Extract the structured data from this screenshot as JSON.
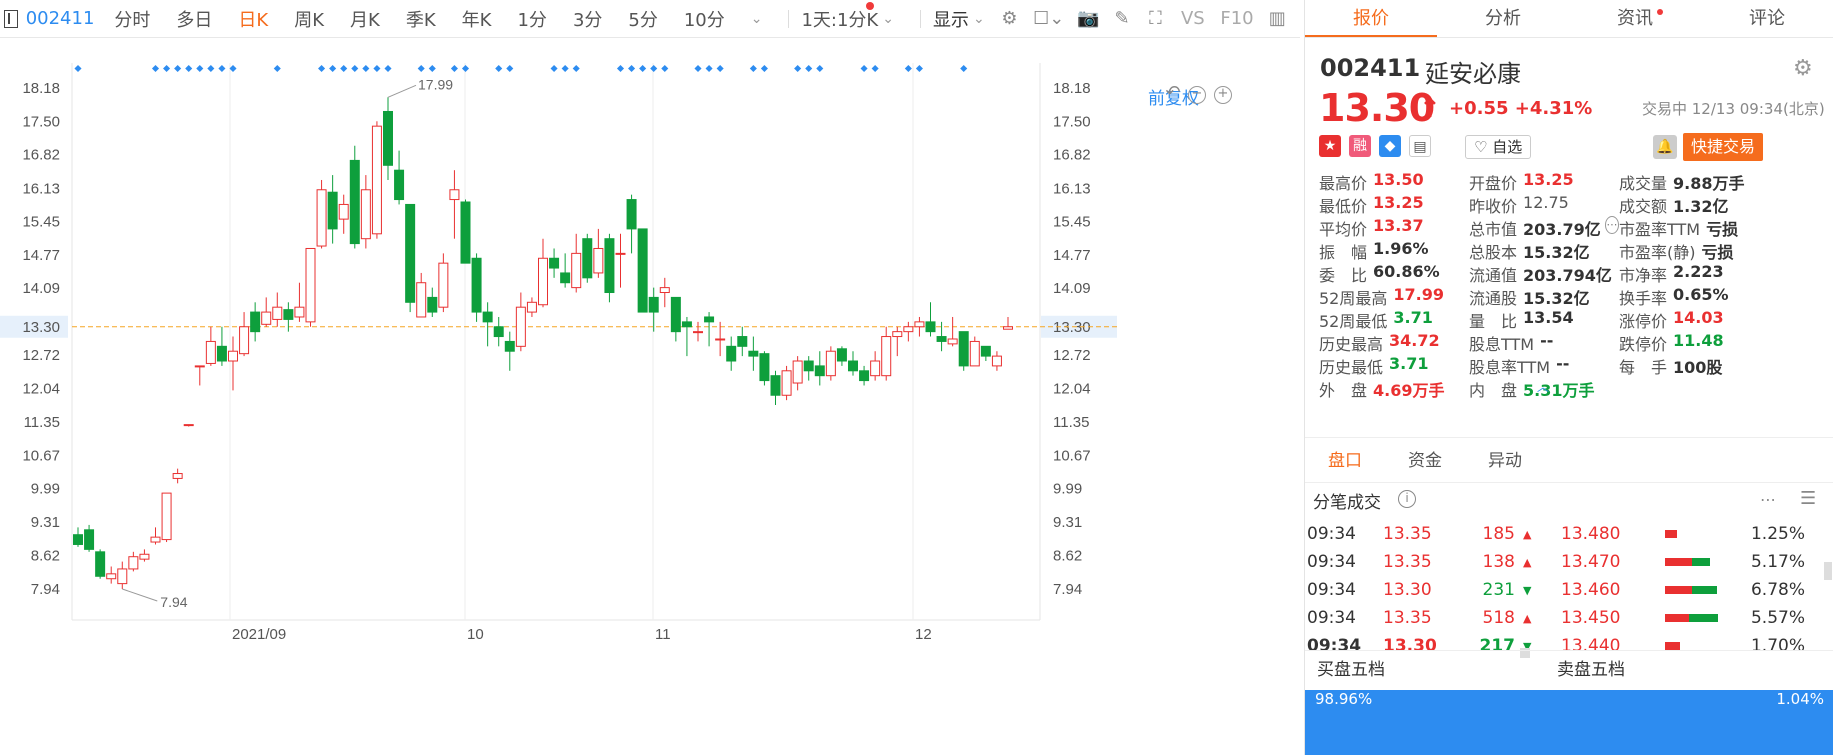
{
  "toolbar": {
    "code": "002411",
    "periods": [
      "分时",
      "多日",
      "日K",
      "周K",
      "月K",
      "季K",
      "年K",
      "1分",
      "3分",
      "5分",
      "10分"
    ],
    "active_period": "日K",
    "interval_select": "1天:1分K",
    "display_label": "显示",
    "vs_label": "VS",
    "f10_label": "F10"
  },
  "chart": {
    "adjust_label": "前复权",
    "yticks": [
      "18.18",
      "17.50",
      "16.82",
      "16.13",
      "15.45",
      "14.77",
      "14.09",
      "13.30",
      "12.72",
      "12.04",
      "11.35",
      "10.67",
      "9.99",
      "9.31",
      "8.62",
      "7.94"
    ],
    "xticks": [
      "2021/09",
      "10",
      "11",
      "12"
    ],
    "current_price_tag": "13.30",
    "high_label": "17.99",
    "low_label": "7.94",
    "up_color": "#e93030",
    "down_color": "#0e9f3c",
    "dash_color": "#f5a623"
  },
  "chart_data": {
    "type": "candlestick",
    "ylim": [
      7.94,
      18.18
    ],
    "xlabel": "",
    "ylabel": "",
    "x_tick_labels": [
      "2021/09",
      "10",
      "11",
      "12"
    ],
    "annotations": [
      {
        "text": "17.99",
        "type": "max"
      },
      {
        "text": "7.94",
        "type": "min"
      }
    ],
    "candles": [
      [
        9.05,
        8.85,
        9.2,
        8.8
      ],
      [
        9.15,
        8.75,
        9.25,
        8.7
      ],
      [
        8.7,
        8.2,
        8.75,
        8.15
      ],
      [
        8.15,
        8.25,
        8.4,
        8.05
      ],
      [
        8.05,
        8.35,
        8.5,
        7.94
      ],
      [
        8.35,
        8.6,
        8.7,
        8.3
      ],
      [
        8.55,
        8.65,
        8.75,
        8.5
      ],
      [
        8.9,
        9.0,
        9.2,
        8.85
      ],
      [
        8.95,
        9.9,
        9.9,
        8.9
      ],
      [
        10.2,
        10.3,
        10.4,
        10.1
      ],
      [
        11.28,
        11.3,
        11.3,
        11.26
      ],
      [
        12.5,
        12.5,
        12.5,
        12.1
      ],
      [
        12.55,
        13.0,
        13.3,
        12.5
      ],
      [
        12.9,
        12.6,
        13.3,
        12.5
      ],
      [
        12.6,
        12.8,
        13.1,
        12.0
      ],
      [
        12.75,
        13.3,
        13.6,
        12.7
      ],
      [
        13.6,
        13.2,
        13.8,
        13.0
      ],
      [
        13.35,
        13.6,
        13.9,
        13.3
      ],
      [
        13.45,
        13.7,
        14.0,
        13.3
      ],
      [
        13.65,
        13.45,
        13.8,
        13.2
      ],
      [
        13.5,
        13.7,
        14.2,
        13.4
      ],
      [
        13.4,
        14.9,
        14.9,
        13.3
      ],
      [
        14.95,
        16.1,
        16.3,
        14.9
      ],
      [
        16.05,
        15.3,
        16.4,
        15.0
      ],
      [
        15.5,
        15.8,
        16.0,
        15.2
      ],
      [
        16.7,
        15.0,
        17.0,
        14.9
      ],
      [
        15.1,
        16.1,
        16.4,
        14.9
      ],
      [
        15.2,
        17.4,
        17.5,
        15.1
      ],
      [
        17.7,
        16.6,
        17.99,
        16.3
      ],
      [
        16.5,
        15.9,
        16.9,
        15.8
      ],
      [
        15.8,
        13.8,
        15.8,
        13.6
      ],
      [
        13.5,
        14.2,
        14.4,
        13.5
      ],
      [
        13.9,
        13.6,
        14.1,
        13.5
      ],
      [
        13.7,
        14.6,
        14.8,
        13.6
      ],
      [
        15.9,
        16.1,
        16.5,
        15.1
      ],
      [
        15.85,
        14.6,
        15.9,
        14.6
      ],
      [
        14.7,
        13.6,
        14.8,
        13.4
      ],
      [
        13.6,
        13.4,
        13.8,
        12.9
      ],
      [
        13.3,
        13.1,
        13.5,
        12.9
      ],
      [
        13.0,
        12.8,
        13.2,
        12.4
      ],
      [
        12.9,
        13.7,
        14.0,
        12.8
      ],
      [
        13.6,
        13.8,
        13.9,
        13.5
      ],
      [
        13.75,
        14.7,
        15.1,
        13.7
      ],
      [
        14.7,
        14.5,
        14.9,
        14.3
      ],
      [
        14.4,
        14.2,
        14.8,
        14.1
      ],
      [
        14.1,
        14.8,
        15.2,
        14.0
      ],
      [
        15.1,
        14.3,
        15.2,
        14.2
      ],
      [
        14.4,
        14.9,
        15.3,
        14.3
      ],
      [
        15.1,
        14.0,
        15.2,
        13.8
      ],
      [
        14.8,
        14.8,
        15.2,
        14.1
      ],
      [
        15.9,
        15.3,
        16.0,
        14.8
      ],
      [
        15.3,
        13.6,
        15.3,
        13.6
      ],
      [
        13.9,
        13.6,
        14.1,
        13.2
      ],
      [
        14.0,
        14.1,
        14.3,
        13.7
      ],
      [
        13.9,
        13.2,
        13.9,
        13.0
      ],
      [
        13.4,
        13.3,
        13.5,
        12.7
      ],
      [
        13.2,
        13.2,
        13.4,
        13.0
      ],
      [
        13.5,
        13.4,
        13.6,
        12.9
      ],
      [
        13.05,
        13.05,
        13.4,
        12.7
      ],
      [
        12.9,
        12.6,
        13.1,
        12.4
      ],
      [
        13.1,
        12.9,
        13.3,
        12.7
      ],
      [
        12.8,
        12.7,
        13.1,
        12.4
      ],
      [
        12.75,
        12.2,
        12.8,
        12.1
      ],
      [
        12.3,
        11.9,
        12.4,
        11.7
      ],
      [
        11.9,
        12.4,
        12.5,
        11.8
      ],
      [
        12.15,
        12.6,
        12.7,
        12.0
      ],
      [
        12.6,
        12.4,
        12.7,
        12.2
      ],
      [
        12.5,
        12.3,
        12.8,
        12.1
      ],
      [
        12.3,
        12.8,
        12.9,
        12.2
      ],
      [
        12.85,
        12.6,
        12.9,
        12.5
      ],
      [
        12.6,
        12.4,
        12.8,
        12.3
      ],
      [
        12.4,
        12.2,
        12.5,
        12.1
      ],
      [
        12.3,
        12.6,
        12.8,
        12.2
      ],
      [
        12.3,
        13.1,
        13.3,
        12.2
      ],
      [
        13.1,
        13.2,
        13.3,
        12.7
      ],
      [
        13.2,
        13.3,
        13.4,
        13.0
      ],
      [
        13.3,
        13.4,
        13.5,
        13.1
      ],
      [
        13.4,
        13.2,
        13.8,
        13.1
      ],
      [
        13.1,
        13.0,
        13.4,
        12.8
      ],
      [
        12.95,
        13.05,
        13.5,
        12.9
      ],
      [
        13.2,
        12.5,
        13.2,
        12.4
      ],
      [
        12.5,
        13.0,
        13.1,
        12.5
      ],
      [
        12.9,
        12.7,
        12.9,
        12.6
      ],
      [
        12.5,
        12.7,
        12.8,
        12.4
      ],
      [
        13.25,
        13.3,
        13.5,
        13.25
      ]
    ],
    "markers_count": 44,
    "current": 13.3
  },
  "quote": {
    "code": "002411",
    "name": "延安必康",
    "price": "13.30",
    "arrow": "↑",
    "change": "+0.55",
    "change_pct": "+4.31%",
    "trade_status": "交易中 12/13 09:34(北京)",
    "watch_label": "自选",
    "quick_trade": "快捷交易"
  },
  "tabs": [
    "报价",
    "分析",
    "资讯",
    "评论"
  ],
  "stats": [
    [
      [
        "最高价",
        "13.50",
        "red"
      ],
      [
        "开盘价",
        "13.25",
        "red"
      ],
      [
        "成交量",
        "9.88万手",
        "dark"
      ]
    ],
    [
      [
        "最低价",
        "13.25",
        "red"
      ],
      [
        "昨收价",
        "12.75",
        "gray"
      ],
      [
        "成交额",
        "1.32亿",
        "dark"
      ]
    ],
    [
      [
        "平均价",
        "13.37",
        "red"
      ],
      [
        "总市值",
        "203.79亿",
        "dark"
      ],
      [
        "市盈率TTM",
        "亏损",
        "dark"
      ]
    ],
    [
      [
        "振　幅",
        "1.96%",
        "dark"
      ],
      [
        "总股本",
        "15.32亿",
        "dark"
      ],
      [
        "市盈率(静)",
        "亏损",
        "dark"
      ]
    ],
    [
      [
        "委　比",
        "60.86%",
        "dark"
      ],
      [
        "流通值",
        "203.794亿",
        "dark"
      ],
      [
        "市净率",
        "2.223",
        "dark"
      ]
    ],
    [
      [
        "52周最高",
        "17.99",
        "red"
      ],
      [
        "流通股",
        "15.32亿",
        "dark"
      ],
      [
        "换手率",
        "0.65%",
        "dark"
      ]
    ],
    [
      [
        "52周最低",
        "3.71",
        "green"
      ],
      [
        "量　比",
        "13.54",
        "dark"
      ],
      [
        "涨停价",
        "14.03",
        "red"
      ]
    ],
    [
      [
        "历史最高",
        "34.72",
        "red"
      ],
      [
        "股息TTM",
        "--",
        "dark"
      ],
      [
        "跌停价",
        "11.48",
        "green"
      ]
    ],
    [
      [
        "历史最低",
        "3.71",
        "green"
      ],
      [
        "股息率TTM",
        "--",
        "dark"
      ],
      [
        "每　手",
        "100股",
        "dark"
      ]
    ],
    [
      [
        "外　盘",
        "4.69万手",
        "red"
      ],
      [
        "内　盘",
        "5.31万手",
        "green"
      ],
      [
        "",
        "",
        ""
      ]
    ]
  ],
  "subtabs": [
    "盘口",
    "资金",
    "异动"
  ],
  "ticks_title": "分笔成交",
  "ticks": [
    {
      "time": "09:34",
      "price": "13.35",
      "vol": "185",
      "dir": "up"
    },
    {
      "time": "09:34",
      "price": "13.35",
      "vol": "138",
      "dir": "up"
    },
    {
      "time": "09:34",
      "price": "13.30",
      "vol": "231",
      "dir": "down"
    },
    {
      "time": "09:34",
      "price": "13.35",
      "vol": "518",
      "dir": "up"
    },
    {
      "time": "09:34",
      "price": "13.30",
      "vol": "217",
      "dir": "down"
    }
  ],
  "book": [
    {
      "price": "13.480",
      "pct": "1.25%",
      "r": 0.2,
      "g": 0.0
    },
    {
      "price": "13.470",
      "pct": "5.17%",
      "r": 0.45,
      "g": 0.3
    },
    {
      "price": "13.460",
      "pct": "6.78%",
      "r": 0.45,
      "g": 0.42
    },
    {
      "price": "13.450",
      "pct": "5.57%",
      "r": 0.4,
      "g": 0.48
    },
    {
      "price": "13.440",
      "pct": "1.70%",
      "r": 0.25,
      "g": 0.0
    }
  ],
  "bottom": {
    "buy5": "买盘五档",
    "sell5": "卖盘五档",
    "buy_pct": "98.96%",
    "sell_pct": "1.04%"
  }
}
